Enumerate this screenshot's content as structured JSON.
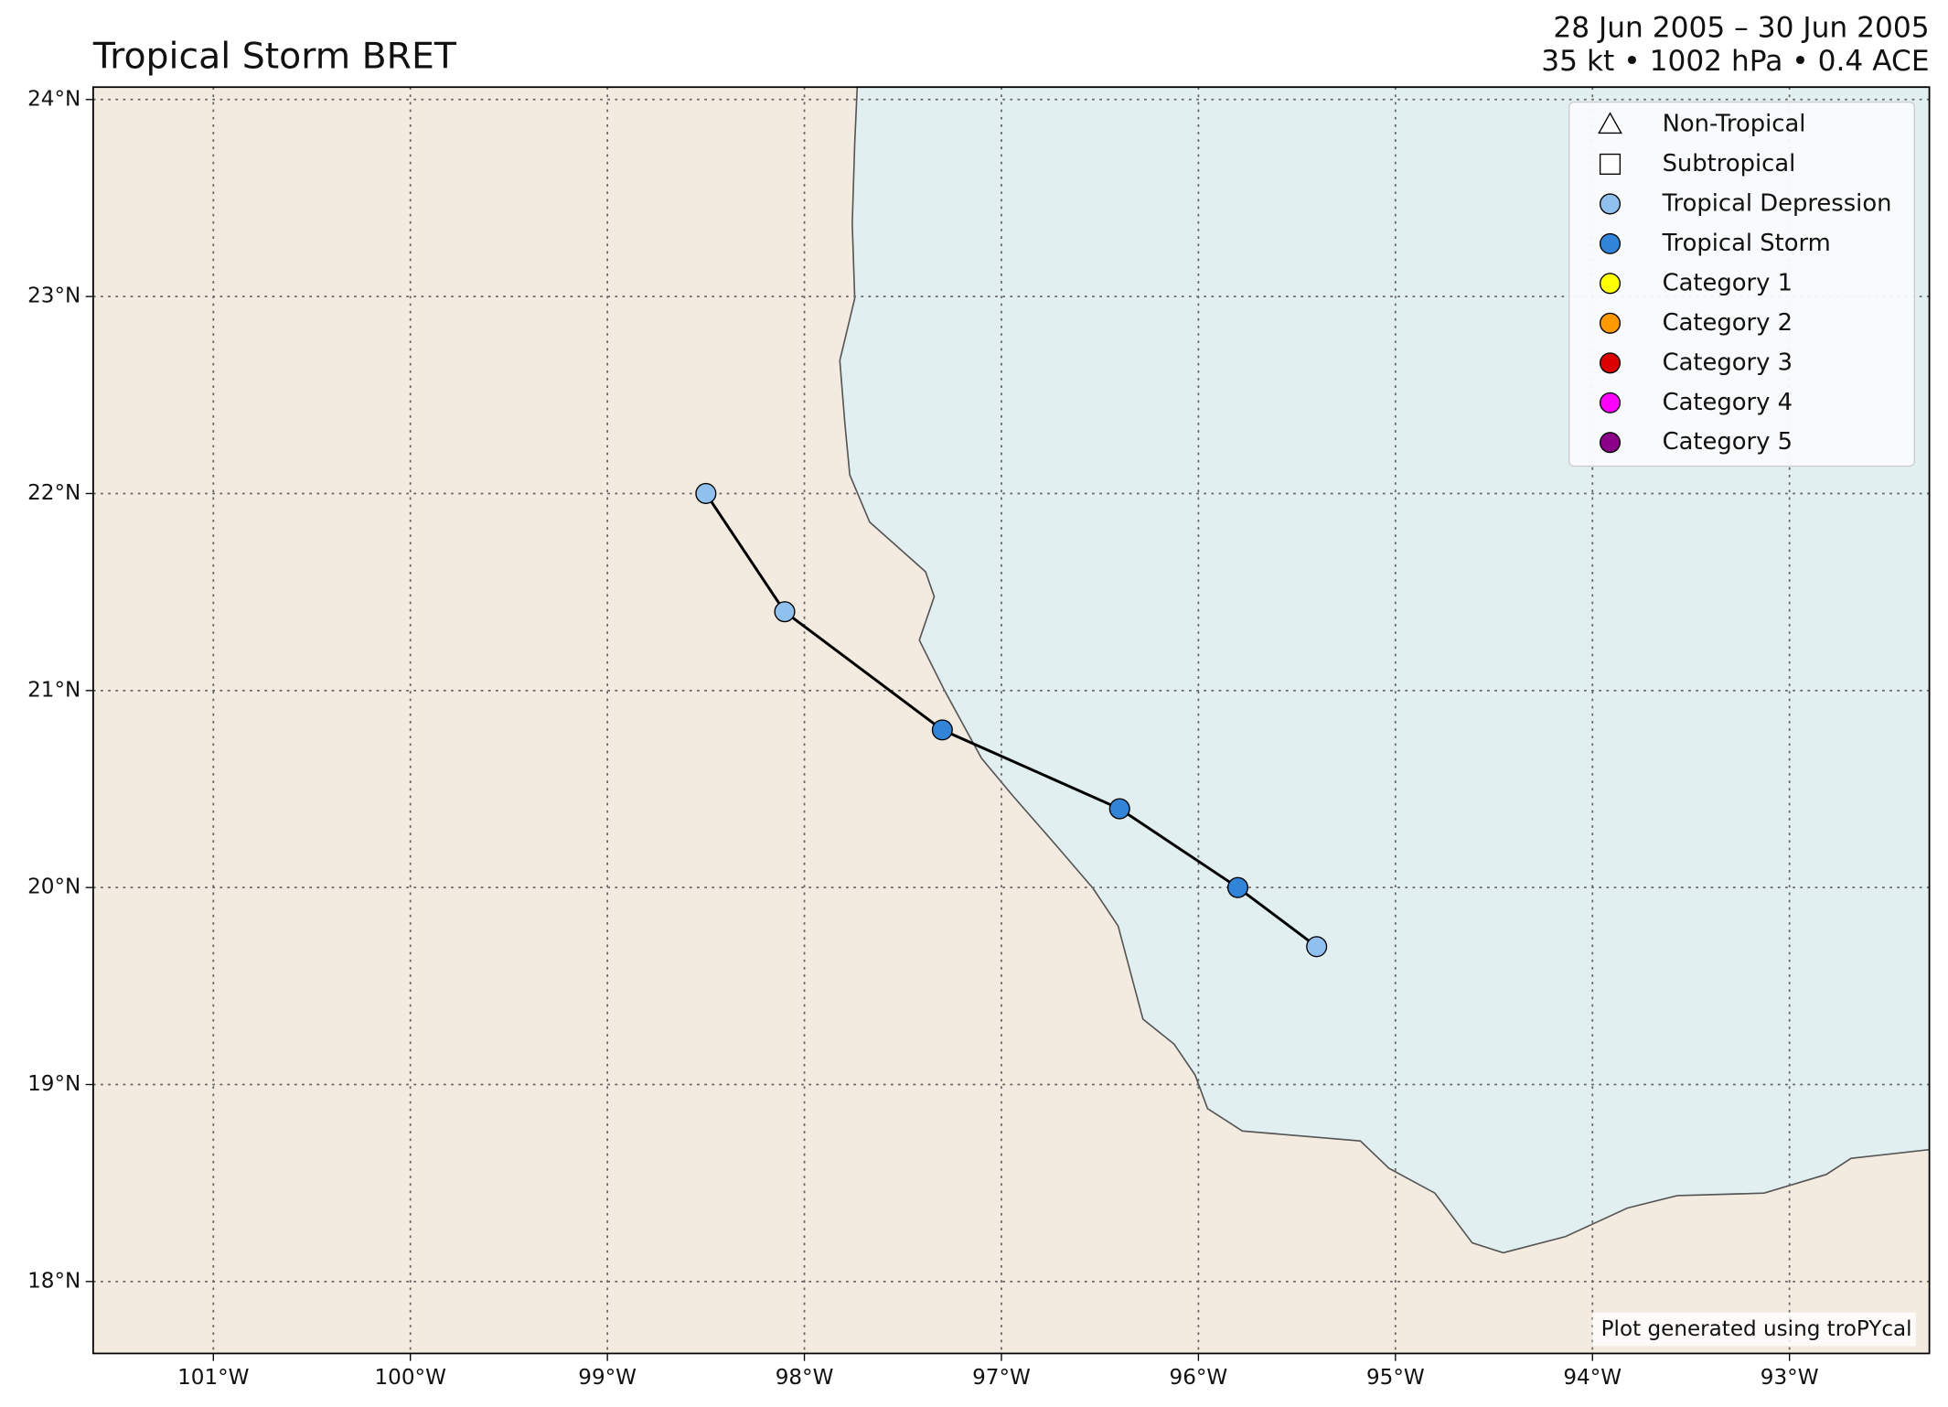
{
  "chart_data": {
    "type": "track",
    "title": "Tropical Storm BRET",
    "subtitle": [
      "28 Jun 2005 – 30 Jun 2005",
      "35 kt • 1002 hPa • 0.4 ACE"
    ],
    "credit": "Plot generated using troPYcal",
    "xlim": [
      -101.61,
      -92.29
    ],
    "ylim": [
      17.635,
      24.063
    ],
    "xticks": [
      {
        "value": -101,
        "label": "101°W"
      },
      {
        "value": -100,
        "label": "100°W"
      },
      {
        "value": -99,
        "label": "99°W"
      },
      {
        "value": -98,
        "label": "98°W"
      },
      {
        "value": -97,
        "label": "97°W"
      },
      {
        "value": -96,
        "label": "96°W"
      },
      {
        "value": -95,
        "label": "95°W"
      },
      {
        "value": -94,
        "label": "94°W"
      },
      {
        "value": -93,
        "label": "93°W"
      }
    ],
    "yticks": [
      {
        "value": 18,
        "label": "18°N"
      },
      {
        "value": 19,
        "label": "19°N"
      },
      {
        "value": 20,
        "label": "20°N"
      },
      {
        "value": 21,
        "label": "21°N"
      },
      {
        "value": 22,
        "label": "22°N"
      },
      {
        "value": 23,
        "label": "23°N"
      },
      {
        "value": 24,
        "label": "24°N"
      }
    ],
    "grid": true,
    "x": [
      -98.5,
      -98.1,
      -97.3,
      -96.4,
      -95.8,
      -95.4
    ],
    "values": [
      22.0,
      21.4,
      20.8,
      20.4,
      20.0,
      19.7
    ],
    "stages": [
      "Tropical Depression",
      "Tropical Depression",
      "Tropical Storm",
      "Tropical Storm",
      "Tropical Storm",
      "Tropical Depression"
    ],
    "line_color": "#000000",
    "legend": "upper right",
    "series": [
      {
        "name": "Non-Tropical",
        "marker": "triangle",
        "color": "#ffffff"
      },
      {
        "name": "Subtropical",
        "marker": "square",
        "color": "#ffffff"
      },
      {
        "name": "Tropical Depression",
        "marker": "circle",
        "color": "#8fc0ee"
      },
      {
        "name": "Tropical Storm",
        "marker": "circle",
        "color": "#3184d8"
      },
      {
        "name": "Category 1",
        "marker": "circle",
        "color": "#ffff00"
      },
      {
        "name": "Category 2",
        "marker": "circle",
        "color": "#ff9900"
      },
      {
        "name": "Category 3",
        "marker": "circle",
        "color": "#dd0000"
      },
      {
        "name": "Category 4",
        "marker": "circle",
        "color": "#ff00ff"
      },
      {
        "name": "Category 5",
        "marker": "circle",
        "color": "#8b0088"
      }
    ]
  }
}
